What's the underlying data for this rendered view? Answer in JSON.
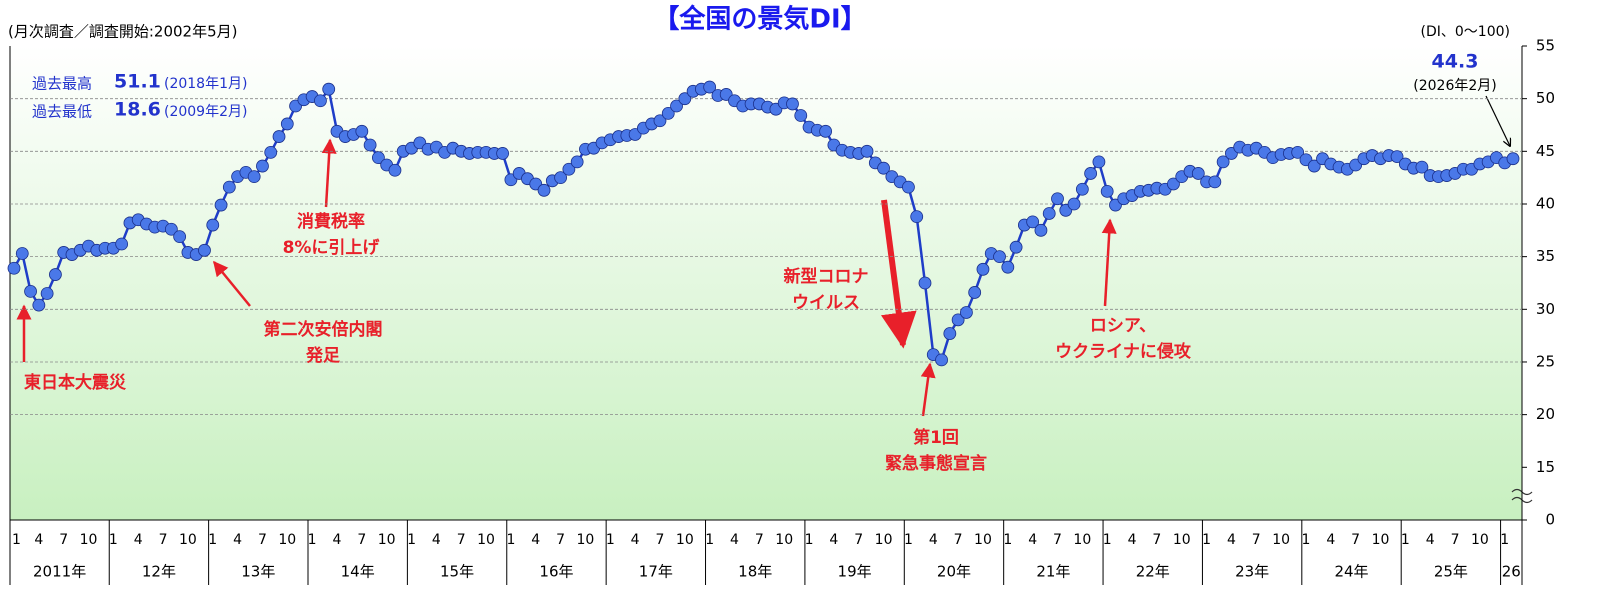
{
  "chart_data": {
    "type": "line",
    "title": "【全国の景気DI】",
    "subtitle": "(月次調査／調査開始:2002年5月)",
    "y_unit": "(DI、0〜100)",
    "categories": [
      "1",
      null,
      null,
      "4",
      null,
      null,
      "7",
      null,
      null,
      "10",
      null,
      null,
      "1",
      null,
      null,
      "4",
      null,
      null,
      "7",
      null,
      null,
      "10",
      null,
      null,
      "1",
      null,
      null,
      "4",
      null,
      null,
      "7",
      null,
      null,
      "10",
      null,
      null,
      "1",
      null,
      null,
      "4",
      null,
      null,
      "7",
      null,
      null,
      "10",
      null,
      null,
      "1",
      null,
      null,
      "4",
      null,
      null,
      "7",
      null,
      null,
      "10",
      null,
      null,
      "1",
      null,
      null,
      "4",
      null,
      null,
      "7",
      null,
      null,
      "10",
      null,
      null,
      "1",
      null,
      null,
      "4",
      null,
      null,
      "7",
      null,
      null,
      "10",
      null,
      null,
      "1",
      null,
      null,
      "4",
      null,
      null,
      "7",
      null,
      null,
      "10",
      null,
      null,
      "1",
      null,
      null,
      "4",
      null,
      null,
      "7",
      null,
      null,
      "10",
      null,
      null,
      "1",
      null,
      null,
      "4",
      null,
      null,
      "7",
      null,
      null,
      "10",
      null,
      null,
      "1",
      null,
      null,
      "4",
      null,
      null,
      "7",
      null,
      null,
      "10",
      null,
      null,
      "1",
      null,
      null,
      "4",
      null,
      null,
      "7",
      null,
      null,
      "10",
      null,
      null,
      "1",
      null,
      null,
      "4",
      null,
      null,
      "7",
      null,
      null,
      "10",
      null,
      null,
      "1",
      null,
      null,
      "4",
      null,
      null,
      "7",
      null,
      null,
      "10",
      null,
      null,
      "1",
      null,
      null,
      "4",
      null,
      null,
      "7",
      null,
      null,
      "10",
      null,
      null,
      "1",
      null
    ],
    "years": [
      "2011年",
      "12年",
      "13年",
      "14年",
      "15年",
      "16年",
      "17年",
      "18年",
      "19年",
      "20年",
      "21年",
      "22年",
      "23年",
      "24年",
      "25年",
      "26"
    ],
    "values": [
      33.9,
      35.3,
      31.7,
      30.4,
      31.5,
      33.3,
      35.4,
      35.2,
      35.6,
      36.0,
      35.6,
      35.8,
      35.8,
      36.2,
      38.2,
      38.5,
      38.1,
      37.8,
      37.9,
      37.6,
      36.9,
      35.4,
      35.2,
      35.6,
      38.0,
      39.9,
      41.6,
      42.6,
      43.0,
      42.6,
      43.6,
      44.9,
      46.4,
      47.6,
      49.3,
      49.9,
      50.2,
      49.8,
      50.9,
      46.9,
      46.4,
      46.6,
      46.9,
      45.6,
      44.4,
      43.7,
      43.2,
      45.0,
      45.3,
      45.8,
      45.2,
      45.4,
      44.9,
      45.3,
      45.0,
      44.8,
      44.9,
      44.9,
      44.8,
      44.8,
      42.3,
      42.9,
      42.4,
      41.9,
      41.3,
      42.2,
      42.5,
      43.3,
      44.0,
      45.2,
      45.3,
      45.8,
      46.1,
      46.4,
      46.5,
      46.6,
      47.2,
      47.6,
      47.9,
      48.6,
      49.3,
      50.0,
      50.7,
      50.9,
      51.1,
      50.3,
      50.4,
      49.8,
      49.3,
      49.5,
      49.5,
      49.2,
      49.0,
      49.6,
      49.5,
      48.4,
      47.3,
      47.0,
      46.9,
      45.6,
      45.1,
      44.9,
      44.8,
      45.0,
      43.9,
      43.4,
      42.6,
      42.1,
      41.6,
      38.8,
      32.5,
      25.7,
      25.2,
      27.7,
      29.0,
      29.7,
      31.6,
      33.8,
      35.3,
      35.0,
      34.0,
      35.9,
      38.0,
      38.3,
      37.5,
      39.1,
      40.5,
      39.4,
      40.0,
      41.4,
      42.9,
      44.0,
      41.2,
      39.9,
      40.5,
      40.8,
      41.2,
      41.3,
      41.5,
      41.4,
      41.9,
      42.6,
      43.1,
      42.9,
      42.1,
      42.1,
      44.0,
      44.8,
      45.4,
      45.1,
      45.3,
      44.9,
      44.4,
      44.7,
      44.8,
      44.9,
      44.2,
      43.6,
      44.3,
      43.8,
      43.5,
      43.3,
      43.7,
      44.3,
      44.6,
      44.3,
      44.6,
      44.5,
      43.8,
      43.4,
      43.5,
      42.7,
      42.6,
      42.7,
      42.9,
      43.3,
      43.3,
      43.8,
      44.0,
      44.4,
      43.9,
      44.3
    ],
    "color": "#1f3dc8",
    "marker_color": "#4a78e8",
    "ylim": [
      0,
      55
    ],
    "y_break": [
      0,
      15
    ],
    "yticks": [
      0,
      15,
      20,
      25,
      30,
      35,
      40,
      45,
      50,
      55
    ],
    "grid": true,
    "record_high": {
      "label": "過去最高",
      "date": "(2018年1月)"
    },
    "record_low": {
      "label": "過去最低",
      "value": 18.6,
      "date": "(2009年2月)"
    },
    "latest_date": "(2026年2月)",
    "annotations": [
      {
        "lines": [
          "東日本大震災"
        ]
      },
      {
        "lines": [
          "第二次安倍内閣",
          "発足"
        ]
      },
      {
        "lines": [
          "消費税率",
          "8%に引上げ"
        ]
      },
      {
        "lines": [
          "新型コロナ",
          "ウイルス"
        ]
      },
      {
        "lines": [
          "第1回",
          "緊急事態宣言"
        ]
      },
      {
        "lines": [
          "ロシア、",
          "ウクライナに侵攻"
        ]
      }
    ]
  }
}
